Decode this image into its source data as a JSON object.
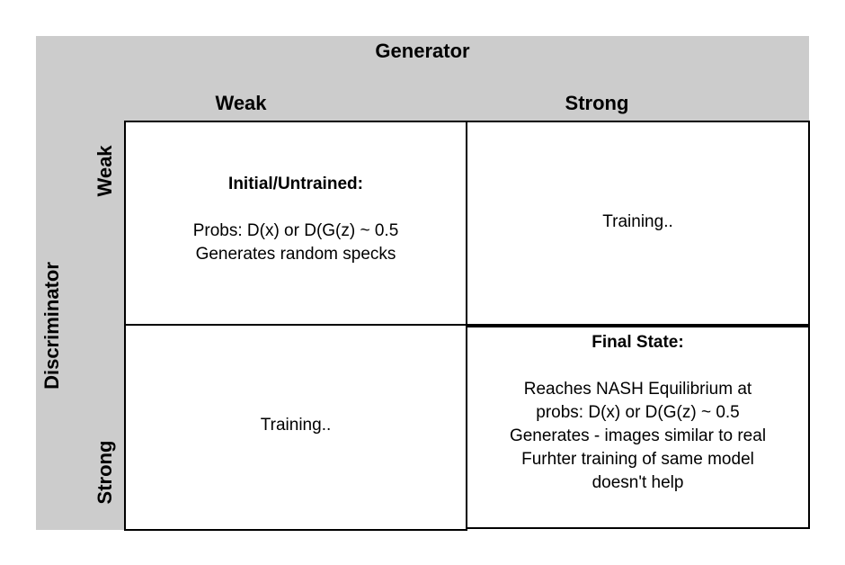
{
  "header": {
    "generator": "Generator",
    "col_weak": "Weak",
    "col_strong": "Strong"
  },
  "side": {
    "discriminator": "Discriminator",
    "row_weak": "Weak",
    "row_strong": "Strong"
  },
  "cells": {
    "weak_weak": {
      "title": "Initial/Untrained:",
      "line1": "Probs: D(x) or D(G(z) ~ 0.5",
      "line2": "Generates random specks"
    },
    "weak_strong": {
      "text": "Training.."
    },
    "strong_weak": {
      "text": "Training.."
    },
    "strong_strong": {
      "title": "Final State:",
      "line1": "Reaches NASH Equilibrium at",
      "line2": "probs: D(x) or D(G(z) ~ 0.5",
      "line3": "Generates - images similar to real",
      "line4": "Furhter training of same model",
      "line5": "doesn't help"
    }
  },
  "colors": {
    "header_background": "#cccccc",
    "cell_background": "#ffffff",
    "border": "#000000",
    "text": "#000000"
  }
}
